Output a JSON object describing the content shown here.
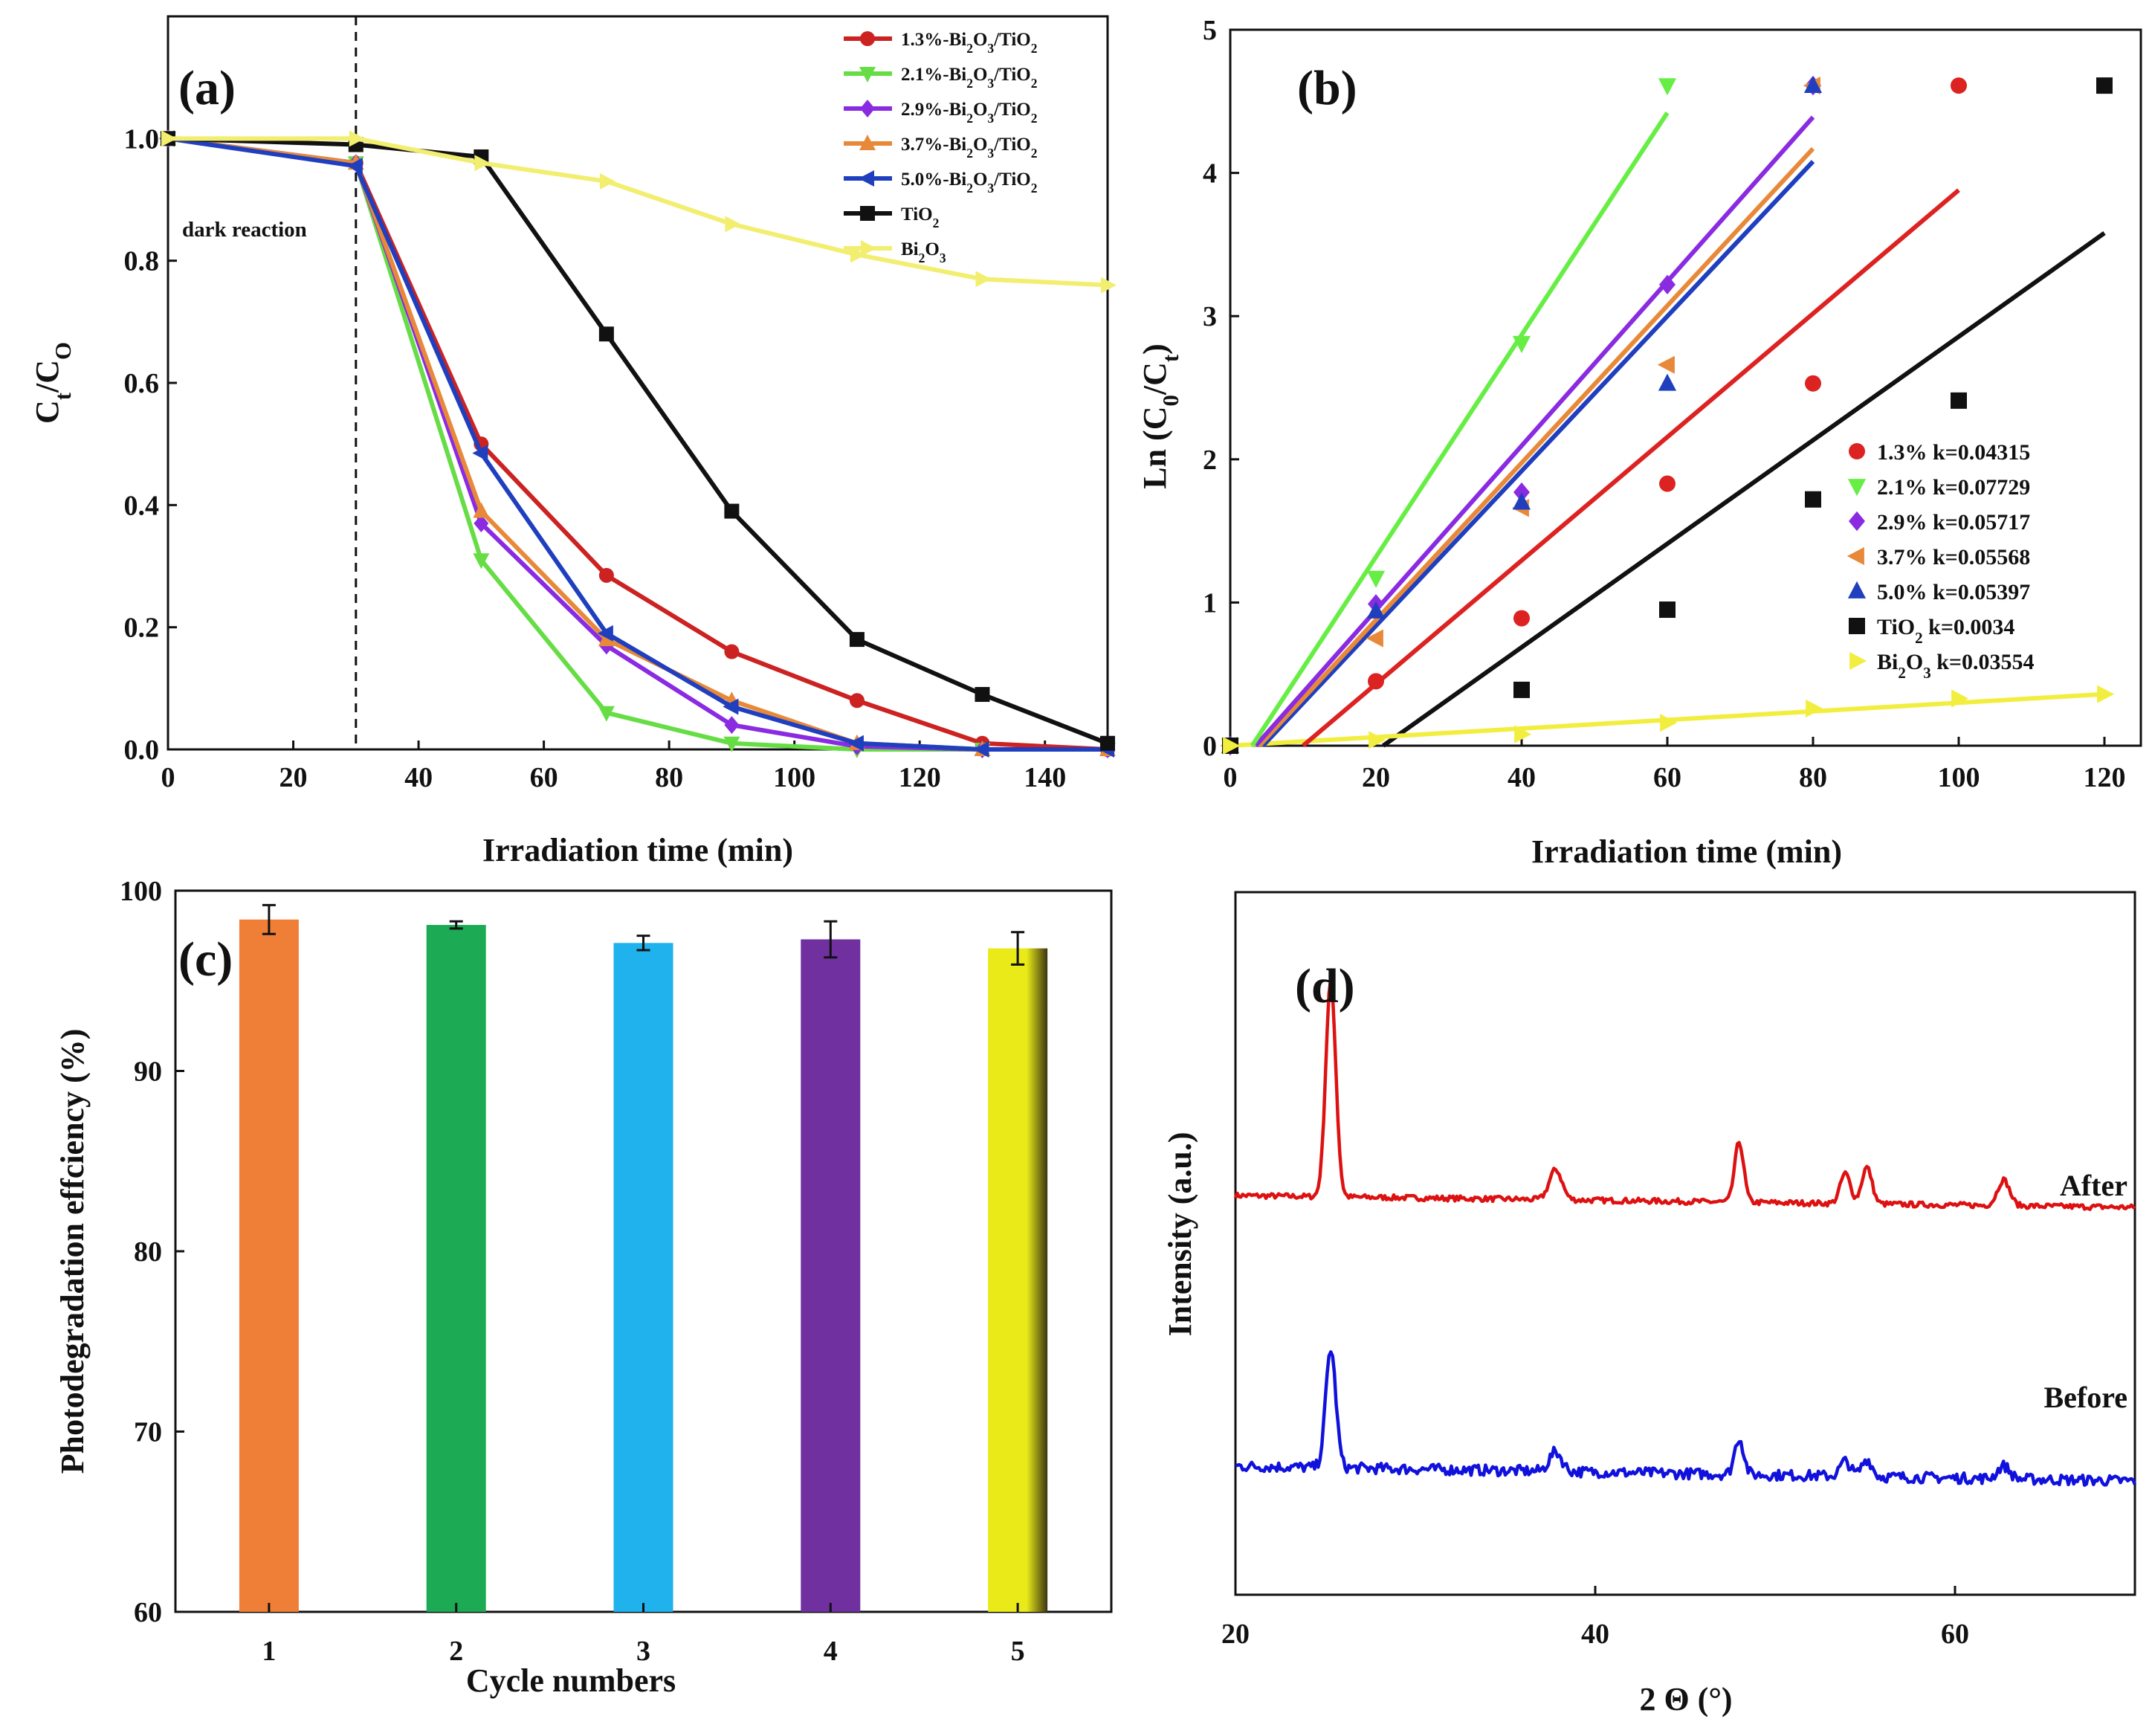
{
  "figure": "Photocatalytic degradation, kinetics, recycling and XRD of Bi2O3/TiO2 composites",
  "chart_data": [
    {
      "panel": "(a)",
      "type": "line",
      "xlabel": "Irradiation time (min)",
      "ylabel": "Ct/CO",
      "xlim": [
        0,
        150
      ],
      "ylim": [
        0,
        1.2
      ],
      "xticks": [
        0,
        20,
        40,
        60,
        80,
        100,
        120,
        140
      ],
      "yticks": [
        "0.0",
        "0.2",
        "0.4",
        "0.6",
        "0.8",
        "1.0"
      ],
      "annotation": "dark reaction",
      "dark_reaction_end": 30,
      "legend_position": "top-right",
      "series": [
        {
          "name": "1.3%-Bi2O3/TiO2",
          "color": "#cc2222",
          "marker": "circle",
          "x": [
            0,
            30,
            50,
            70,
            90,
            110,
            130,
            150
          ],
          "values": [
            1.0,
            0.96,
            0.5,
            0.285,
            0.16,
            0.08,
            0.01,
            0.0
          ]
        },
        {
          "name": "2.1%-Bi2O3/TiO2",
          "color": "#66dd44",
          "marker": "tri-down",
          "x": [
            0,
            30,
            50,
            70,
            90,
            110,
            130,
            150
          ],
          "values": [
            1.0,
            0.96,
            0.31,
            0.06,
            0.01,
            0.0,
            0.0,
            0.0
          ]
        },
        {
          "name": "2.9%-Bi2O3/TiO2",
          "color": "#8a2be2",
          "marker": "diamond",
          "x": [
            0,
            30,
            50,
            70,
            90,
            110,
            130,
            150
          ],
          "values": [
            1.0,
            0.96,
            0.37,
            0.17,
            0.04,
            0.005,
            0.0,
            0.0
          ]
        },
        {
          "name": "3.7%-Bi2O3/TiO2",
          "color": "#e8893a",
          "marker": "tri-up",
          "x": [
            0,
            30,
            50,
            70,
            90,
            110,
            130,
            150
          ],
          "values": [
            1.0,
            0.96,
            0.39,
            0.18,
            0.08,
            0.01,
            0.0,
            0.0
          ]
        },
        {
          "name": "5.0%-Bi2O3/TiO2",
          "color": "#1f3fbf",
          "marker": "tri-left",
          "x": [
            0,
            30,
            50,
            70,
            90,
            110,
            130,
            150
          ],
          "values": [
            1.0,
            0.955,
            0.485,
            0.19,
            0.07,
            0.01,
            0.0,
            0.0
          ]
        },
        {
          "name": "TiO2",
          "color": "#111111",
          "marker": "square",
          "x": [
            0,
            30,
            50,
            70,
            90,
            110,
            130,
            150
          ],
          "values": [
            1.0,
            0.99,
            0.97,
            0.68,
            0.39,
            0.18,
            0.09,
            0.01
          ]
        },
        {
          "name": "Bi2O3",
          "color": "#f2ee70",
          "marker": "tri-right",
          "x": [
            0,
            30,
            50,
            70,
            90,
            110,
            130,
            150
          ],
          "values": [
            1.0,
            1.0,
            0.96,
            0.93,
            0.86,
            0.81,
            0.77,
            0.76
          ]
        }
      ],
      "legend_labels": [
        {
          "pre": "1.3%-Bi",
          "s1": "2",
          "mid": "O",
          "s2": "3",
          "post": "/TiO",
          "s3": "2"
        },
        {
          "pre": "2.1%-Bi",
          "s1": "2",
          "mid": "O",
          "s2": "3",
          "post": "/TiO",
          "s3": "2"
        },
        {
          "pre": "2.9%-Bi",
          "s1": "2",
          "mid": "O",
          "s2": "3",
          "post": "/TiO",
          "s3": "2"
        },
        {
          "pre": "3.7%-Bi",
          "s1": "2",
          "mid": "O",
          "s2": "3",
          "post": "/TiO",
          "s3": "2"
        },
        {
          "pre": "5.0%-Bi",
          "s1": "2",
          "mid": "O",
          "s2": "3",
          "post": "/TiO",
          "s3": "2"
        },
        {
          "pre": "TiO",
          "s1": "2",
          "mid": "",
          "s2": "",
          "post": "",
          "s3": ""
        },
        {
          "pre": "Bi",
          "s1": "2",
          "mid": "O",
          "s2": "3",
          "post": "",
          "s3": ""
        }
      ]
    },
    {
      "panel": "(b)",
      "type": "scatter",
      "xlabel": "Irradiation time (min)",
      "ylabel": "Ln (C0/Ct)",
      "xlim": [
        0,
        125
      ],
      "ylim": [
        0,
        5
      ],
      "xticks": [
        0,
        20,
        40,
        60,
        80,
        100,
        120
      ],
      "yticks": [
        0,
        1,
        2,
        3,
        4,
        5
      ],
      "legend_position": "center-right",
      "series": [
        {
          "name": "1.3% k=0.04315",
          "k": "0.04315",
          "color": "#dd2222",
          "marker": "circle",
          "x": [
            0,
            20,
            40,
            60,
            80,
            100
          ],
          "values": [
            0,
            0.45,
            0.89,
            1.83,
            2.53,
            4.61
          ],
          "fit_x": [
            10,
            100
          ],
          "fit_y": [
            0.0,
            3.88
          ]
        },
        {
          "name": "2.1% k=0.07729",
          "k": "0.07729",
          "color": "#66ee44",
          "marker": "tri-down",
          "x": [
            0,
            20,
            40,
            60
          ],
          "values": [
            0,
            1.17,
            2.81,
            4.61
          ],
          "fit_x": [
            3,
            60
          ],
          "fit_y": [
            0.0,
            4.42
          ]
        },
        {
          "name": "2.9% k=0.05717",
          "k": "0.05717",
          "color": "#8a2be2",
          "marker": "diamond",
          "x": [
            0,
            20,
            40,
            60,
            80
          ],
          "values": [
            0,
            0.99,
            1.77,
            3.22,
            4.61
          ],
          "fit_x": [
            3.5,
            80
          ],
          "fit_y": [
            0.0,
            4.39
          ]
        },
        {
          "name": "3.7% k=0.05568",
          "k": "0.05568",
          "color": "#e8893a",
          "marker": "tri-left",
          "x": [
            0,
            20,
            40,
            60,
            80
          ],
          "values": [
            0,
            0.75,
            1.66,
            2.66,
            4.61
          ],
          "fit_x": [
            4,
            80
          ],
          "fit_y": [
            0.0,
            4.17
          ]
        },
        {
          "name": "5.0% k=0.05397",
          "k": "0.05397",
          "color": "#1f3fbf",
          "marker": "tri-up",
          "x": [
            0,
            20,
            40,
            60,
            80
          ],
          "values": [
            0,
            0.94,
            1.7,
            2.53,
            4.61
          ],
          "fit_x": [
            4.5,
            80
          ],
          "fit_y": [
            0.0,
            4.08
          ]
        },
        {
          "name": "TiO2 k=0.0034",
          "k": "0.0034",
          "color": "#111111",
          "marker": "square",
          "x": [
            0,
            40,
            60,
            80,
            100,
            120
          ],
          "values": [
            0,
            0.39,
            0.95,
            1.72,
            2.41,
            4.61
          ],
          "fit_x": [
            21,
            120
          ],
          "fit_y": [
            0.0,
            3.58
          ]
        },
        {
          "name": "Bi2O3 k=0.03554",
          "k": "0.03554",
          "color": "#f2ee40",
          "marker": "tri-right",
          "x": [
            0,
            20,
            40,
            60,
            80,
            100,
            120
          ],
          "values": [
            0,
            0.04,
            0.08,
            0.16,
            0.26,
            0.33,
            0.36
          ],
          "fit_x": [
            0,
            120
          ],
          "fit_y": [
            0.0,
            0.36
          ]
        }
      ],
      "legend_labels": [
        {
          "pre": "1.3%",
          "sub": "",
          "post": " k=0.04315"
        },
        {
          "pre": "2.1%",
          "sub": "",
          "post": " k=0.07729"
        },
        {
          "pre": "2.9%",
          "sub": "",
          "post": " k=0.05717"
        },
        {
          "pre": "3.7%",
          "sub": "",
          "post": " k=0.05568"
        },
        {
          "pre": "5.0%",
          "sub": "",
          "post": " k=0.05397"
        },
        {
          "pre": "TiO",
          "sub": "2",
          "post": " k=0.0034"
        },
        {
          "pre": "Bi",
          "sub": "2",
          "post": "O",
          "sub2": "3",
          "post2": " k=0.03554"
        }
      ]
    },
    {
      "panel": "(c)",
      "type": "bar",
      "xlabel": "Cycle numbers",
      "ylabel": "Photodegradation effciency (%)",
      "ylim": [
        60,
        100
      ],
      "yticks": [
        60,
        70,
        80,
        90,
        100
      ],
      "categories": [
        "1",
        "2",
        "3",
        "4",
        "5"
      ],
      "values": [
        98.4,
        98.1,
        97.1,
        97.3,
        96.8
      ],
      "errors": [
        0.8,
        0.2,
        0.4,
        1.0,
        0.9
      ],
      "colors": [
        "#ef7f36",
        "#1caa55",
        "#1fb2ec",
        "#7030a0",
        "#e9ea18"
      ]
    },
    {
      "panel": "(d)",
      "type": "line",
      "xlabel": "2 Θ (°)",
      "ylabel": "Intensity (a.u.)",
      "xlim": [
        20,
        70
      ],
      "xticks": [
        20,
        40,
        60
      ],
      "peaks_2theta": [
        25.3,
        37.8,
        48.0,
        53.9,
        55.1,
        62.7
      ],
      "series": [
        {
          "name": "After",
          "color": "#dd1111",
          "peak_heights": [
            1.0,
            0.14,
            0.28,
            0.14,
            0.17,
            0.12
          ],
          "baseline_offset": 1.5
        },
        {
          "name": "Before",
          "color": "#1111dd",
          "peak_heights": [
            0.55,
            0.09,
            0.17,
            0.07,
            0.08,
            0.06
          ],
          "baseline_offset": 0.0
        }
      ]
    }
  ]
}
